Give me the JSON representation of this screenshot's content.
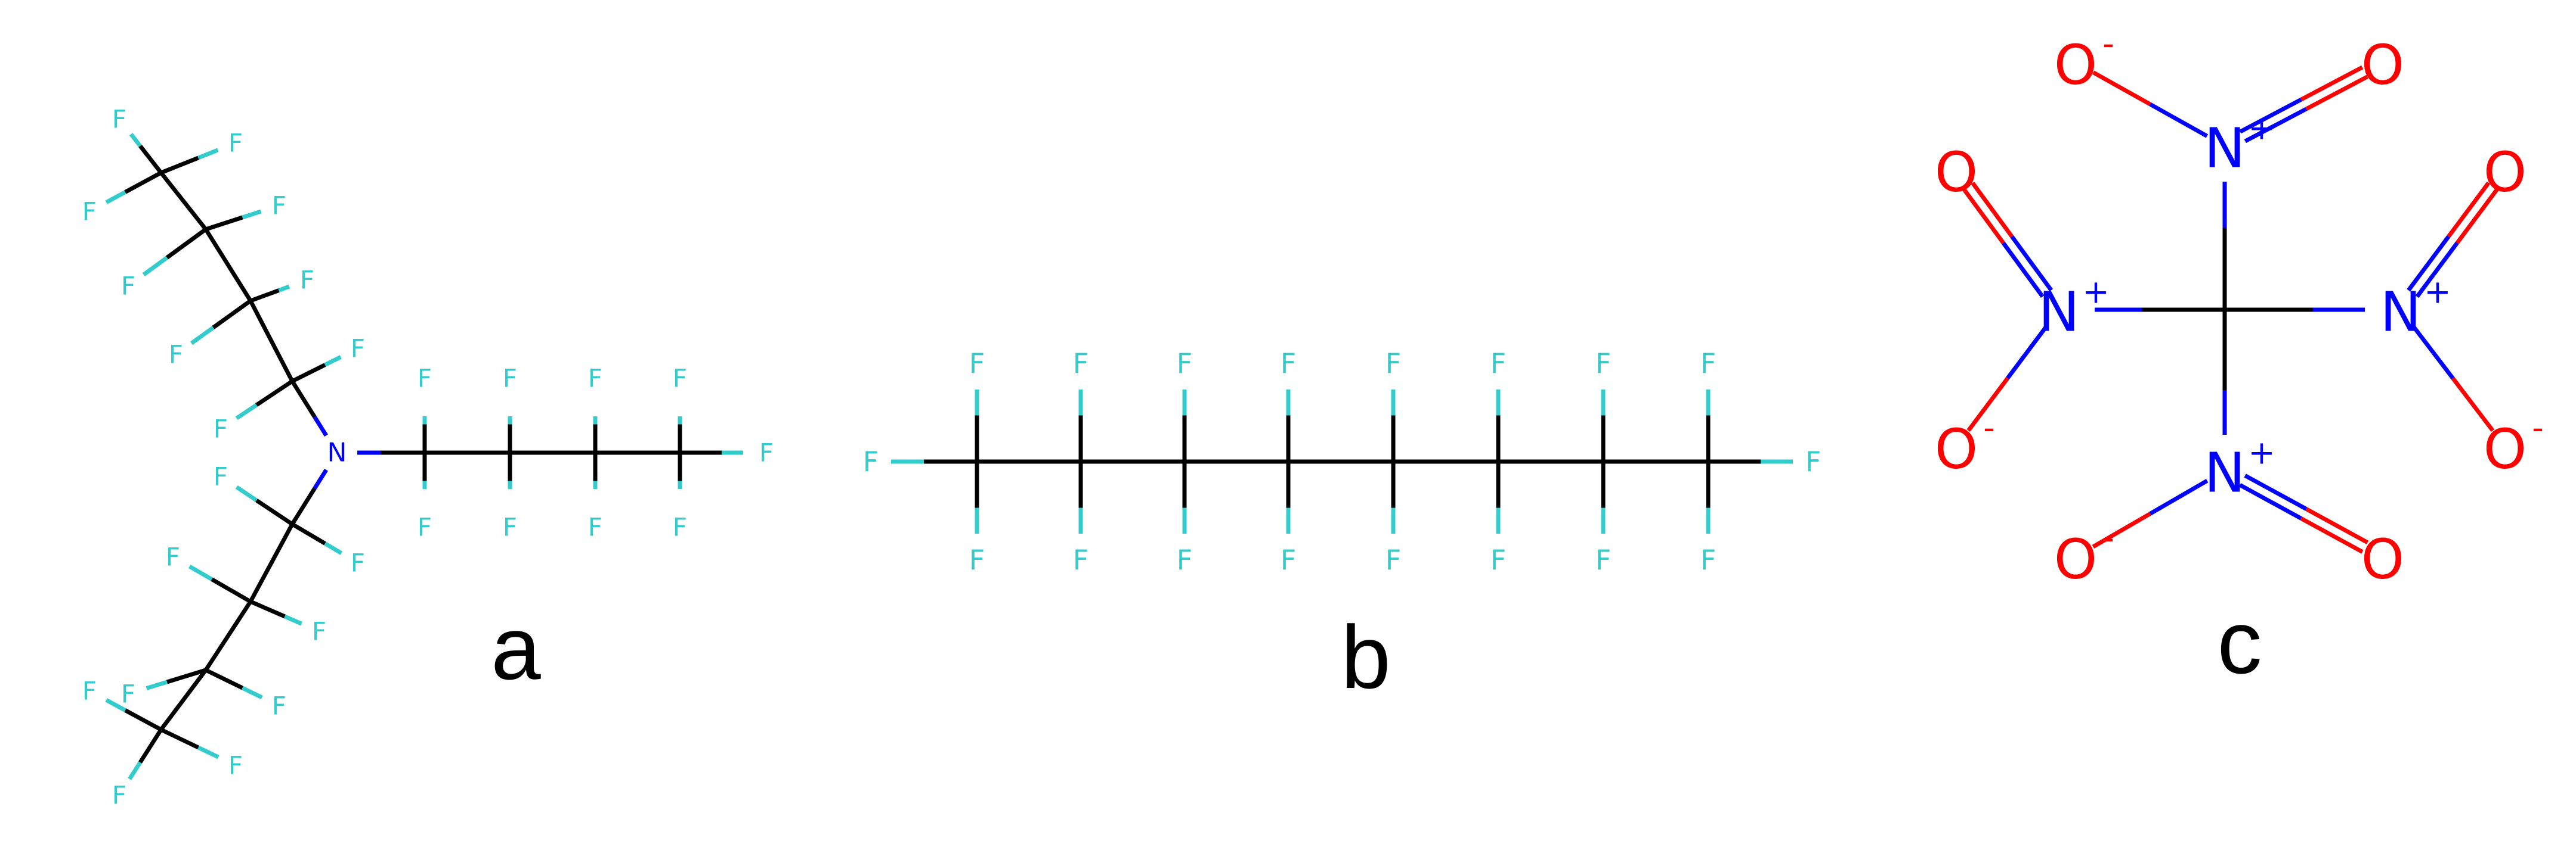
{
  "colors": {
    "bond": "#000000",
    "fluorine": "#33CCCC",
    "nitrogen": "#0000FF",
    "oxygen": "#FF0000",
    "background": "#FFFFFF"
  },
  "panels": [
    {
      "label": "a",
      "atoms": {
        "fluorine": "F",
        "nitrogen": "N"
      }
    },
    {
      "label": "b",
      "atoms": {
        "fluorine": "F"
      }
    },
    {
      "label": "c",
      "atoms": {
        "nitrogen": "N",
        "oxygen": "O",
        "plus_charge": "+",
        "minus_charge": "-"
      }
    }
  ]
}
